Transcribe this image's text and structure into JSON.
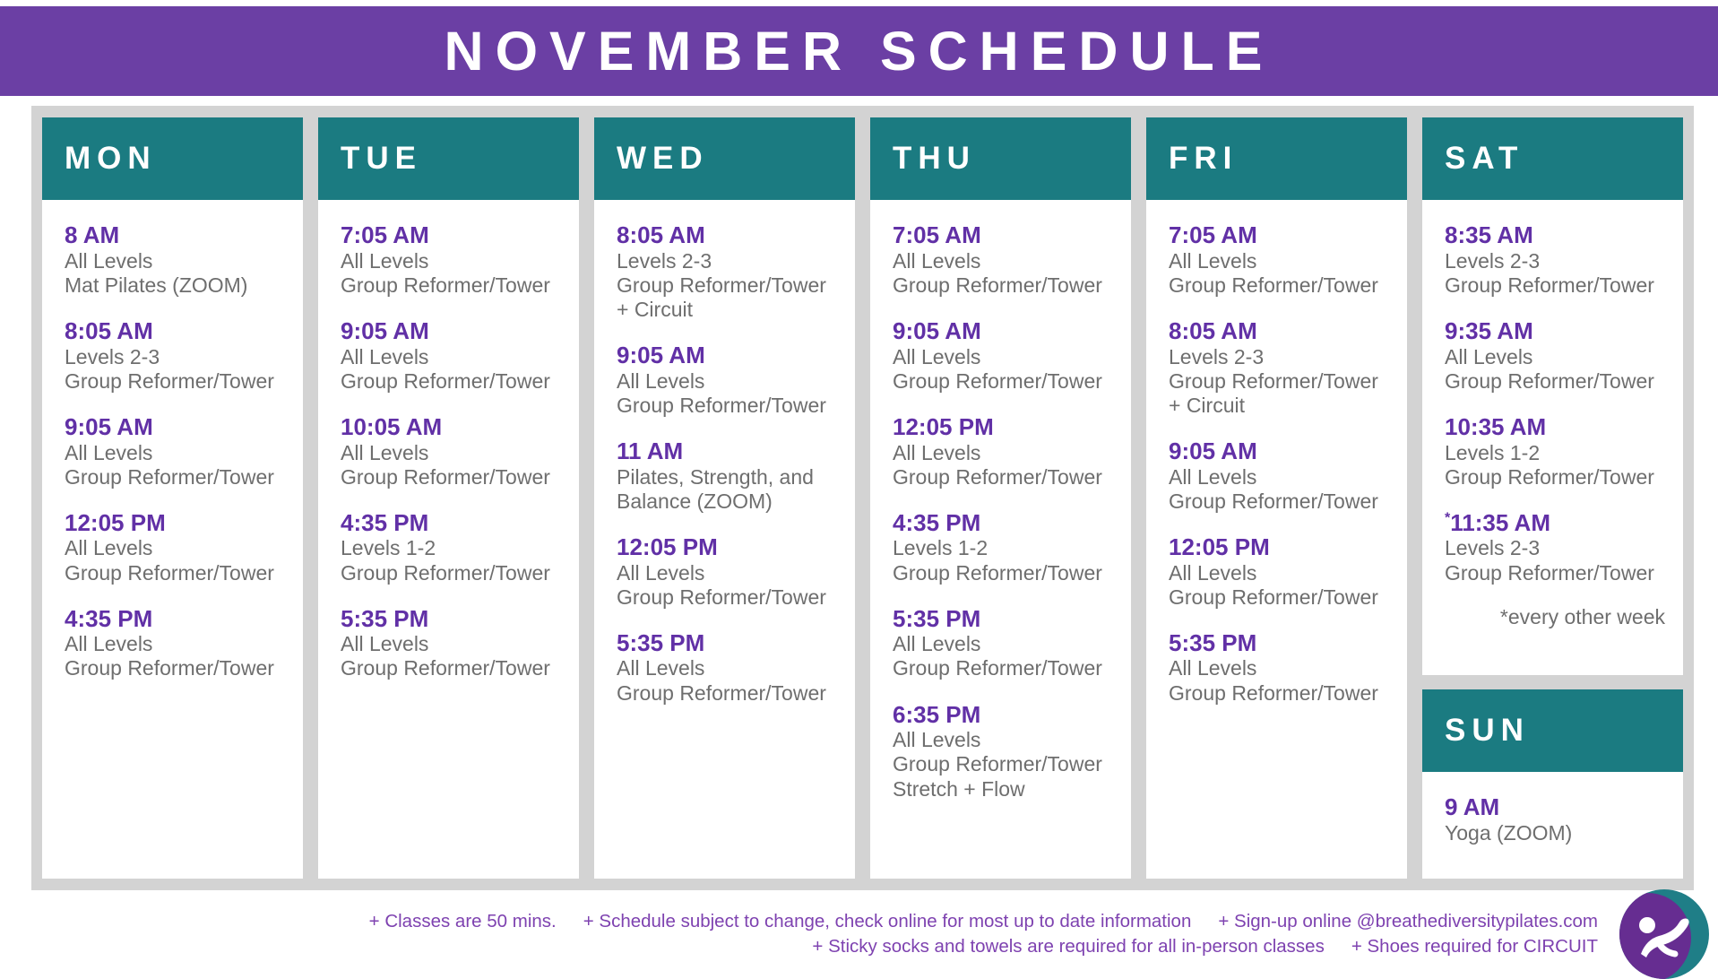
{
  "title": "NOVEMBER SCHEDULE",
  "colors": {
    "banner_purple": "#6b3fa4",
    "teal_header": "#1b7b81",
    "time_purple": "#6130a6",
    "detail_gray": "#6e6e6e",
    "board_gray": "#d3d3d3",
    "footer_purple": "#7e42b0"
  },
  "days": [
    {
      "label": "MON",
      "classes": [
        {
          "time": "8 AM",
          "lines": [
            "All Levels",
            "Mat Pilates (ZOOM)"
          ]
        },
        {
          "time": "8:05 AM",
          "lines": [
            "Levels 2-3",
            "Group Reformer/Tower"
          ]
        },
        {
          "time": "9:05 AM",
          "lines": [
            "All Levels",
            "Group Reformer/Tower"
          ]
        },
        {
          "time": "12:05 PM",
          "lines": [
            "All Levels",
            "Group Reformer/Tower"
          ]
        },
        {
          "time": "4:35 PM",
          "lines": [
            "All Levels",
            "Group Reformer/Tower"
          ]
        }
      ]
    },
    {
      "label": "TUE",
      "classes": [
        {
          "time": "7:05 AM",
          "lines": [
            "All Levels",
            "Group Reformer/Tower"
          ]
        },
        {
          "time": "9:05 AM",
          "lines": [
            "All Levels",
            "Group Reformer/Tower"
          ]
        },
        {
          "time": "10:05 AM",
          "lines": [
            "All Levels",
            "Group Reformer/Tower"
          ]
        },
        {
          "time": "4:35 PM",
          "lines": [
            "Levels 1-2",
            "Group Reformer/Tower"
          ]
        },
        {
          "time": "5:35 PM",
          "lines": [
            "All Levels",
            "Group Reformer/Tower"
          ]
        }
      ]
    },
    {
      "label": "WED",
      "classes": [
        {
          "time": "8:05 AM",
          "lines": [
            "Levels 2-3",
            "Group Reformer/Tower",
            "+ Circuit"
          ]
        },
        {
          "time": "9:05 AM",
          "lines": [
            "All Levels",
            "Group Reformer/Tower"
          ]
        },
        {
          "time": "11 AM",
          "lines": [
            "Pilates, Strength, and",
            "Balance (ZOOM)"
          ]
        },
        {
          "time": "12:05 PM",
          "lines": [
            "All Levels",
            "Group Reformer/Tower"
          ]
        },
        {
          "time": "5:35 PM",
          "lines": [
            "All Levels",
            "Group Reformer/Tower"
          ]
        }
      ]
    },
    {
      "label": "THU",
      "classes": [
        {
          "time": "7:05 AM",
          "lines": [
            "All Levels",
            "Group Reformer/Tower"
          ]
        },
        {
          "time": "9:05 AM",
          "lines": [
            "All Levels",
            "Group Reformer/Tower"
          ]
        },
        {
          "time": "12:05 PM",
          "lines": [
            "All Levels",
            "Group Reformer/Tower"
          ]
        },
        {
          "time": "4:35 PM",
          "lines": [
            "Levels 1-2",
            "Group Reformer/Tower"
          ]
        },
        {
          "time": "5:35 PM",
          "lines": [
            "All Levels",
            "Group Reformer/Tower"
          ]
        },
        {
          "time": "6:35 PM",
          "lines": [
            "All Levels",
            "Group Reformer/Tower",
            "Stretch + Flow"
          ]
        }
      ]
    },
    {
      "label": "FRI",
      "classes": [
        {
          "time": "7:05 AM",
          "lines": [
            "All Levels",
            "Group Reformer/Tower"
          ]
        },
        {
          "time": "8:05 AM",
          "lines": [
            "Levels 2-3",
            "Group Reformer/Tower",
            "+ Circuit"
          ]
        },
        {
          "time": "9:05 AM",
          "lines": [
            "All Levels",
            "Group Reformer/Tower"
          ]
        },
        {
          "time": "12:05 PM",
          "lines": [
            "All Levels",
            "Group Reformer/Tower"
          ]
        },
        {
          "time": "5:35 PM",
          "lines": [
            "All Levels",
            "Group Reformer/Tower"
          ]
        }
      ]
    },
    {
      "label": "SAT",
      "note": "*every other week",
      "classes": [
        {
          "time": "8:35 AM",
          "lines": [
            "Levels 2-3",
            "Group Reformer/Tower"
          ]
        },
        {
          "time": "9:35 AM",
          "lines": [
            "All Levels",
            "Group Reformer/Tower"
          ]
        },
        {
          "time": "10:35 AM",
          "lines": [
            "Levels 1-2",
            "Group Reformer/Tower"
          ]
        },
        {
          "time": "*11:35 AM",
          "lines": [
            "Levels 2-3",
            "Group Reformer/Tower"
          ]
        }
      ]
    }
  ],
  "sunday": {
    "label": "SUN",
    "classes": [
      {
        "time": "9 AM",
        "lines": [
          "Yoga (ZOOM)"
        ]
      }
    ]
  },
  "footer": {
    "line1": [
      "+ Classes are 50 mins.",
      "+ Schedule subject to change, check online for most up to date information",
      "+ Sign-up online @breathediversitypilates.com"
    ],
    "line2": [
      "+ Sticky socks and towels are required for all in-person classes",
      "+ Shoes required for CIRCUIT"
    ]
  },
  "logo": {
    "name": "breathe-diversity-pilates-logo"
  }
}
